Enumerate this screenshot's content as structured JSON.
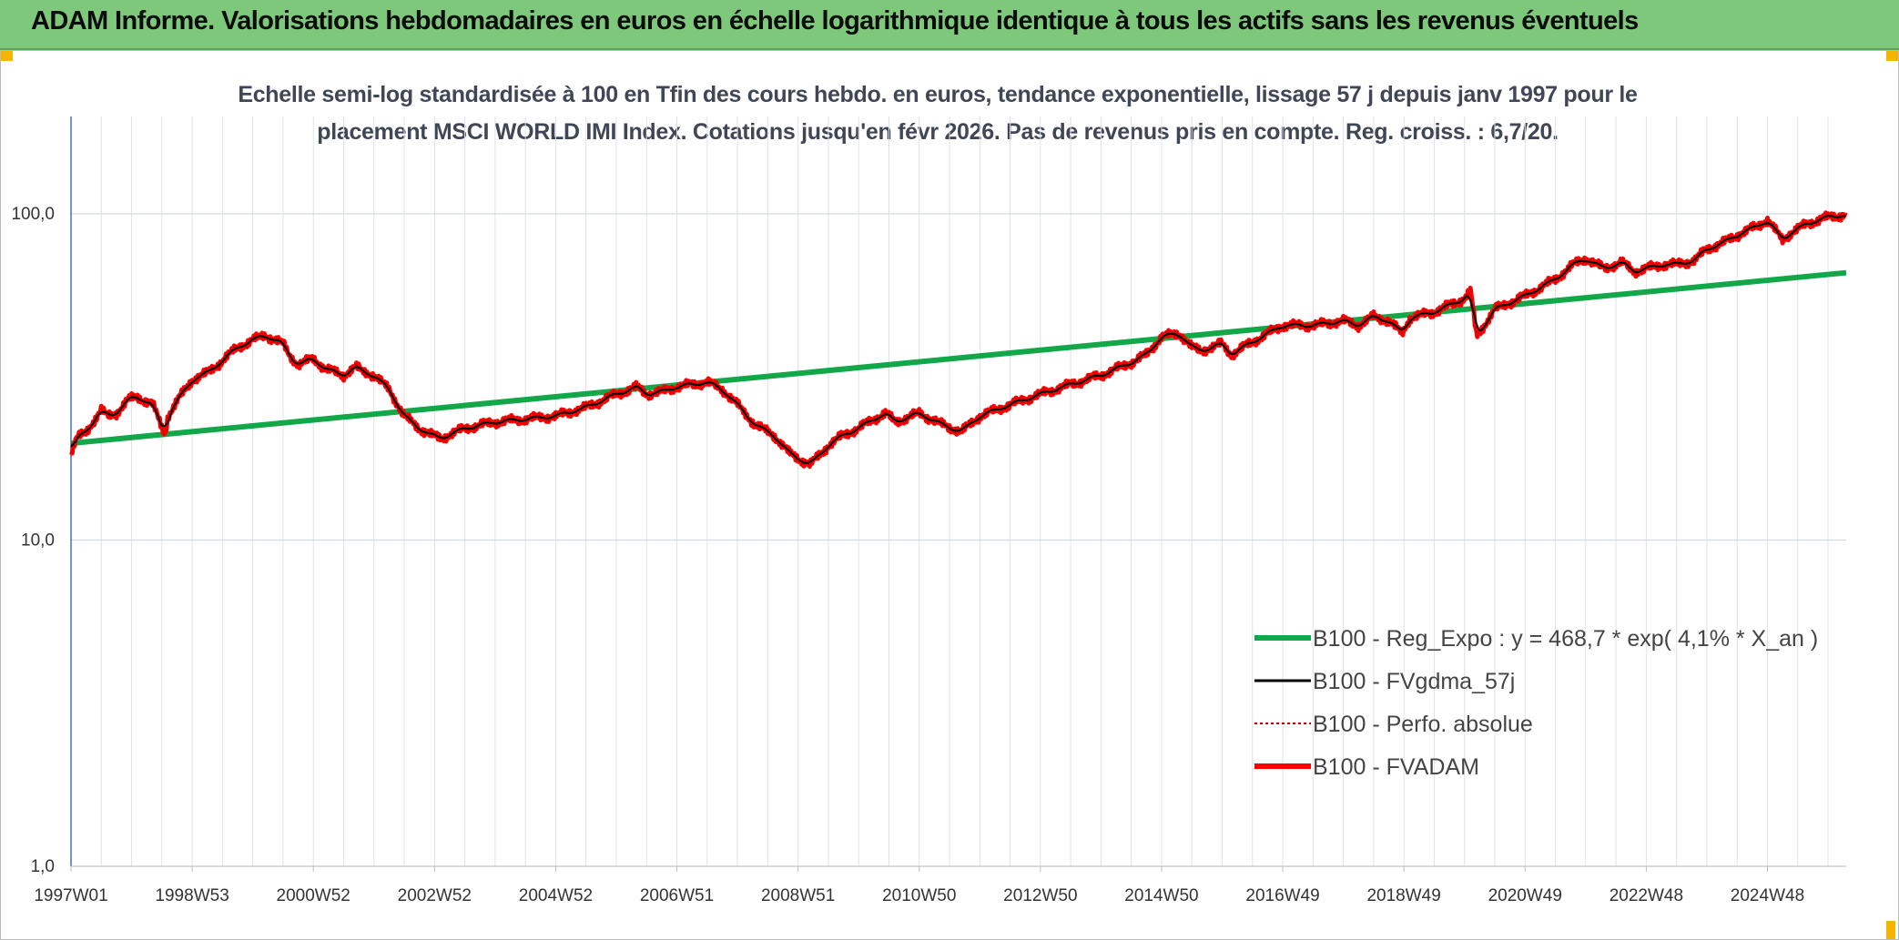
{
  "header": {
    "title": "ADAM Informe. Valorisations hebdomadaires en euros en échelle logarithmique identique à tous les actifs sans les revenus éventuels"
  },
  "colors": {
    "banner": "#7dc87a",
    "accent": "#f5b400",
    "regression": "#12a84a",
    "fvadam": "#ff0000",
    "fvgdma": "#000000",
    "perfo": "#c00000"
  },
  "chart_data": {
    "type": "line",
    "title_line1": "Echelle semi-log standardisée à 100 en Tfin des cours hebdo. en euros, tendance exponentielle, lissage 57 j depuis janv 1997 pour le",
    "title_line2": "placement MSCI WORLD IMI Index. Cotations jusqu'en févr 2026. Pas de revenus pris en compte. Reg. croiss. : 6,7/20.",
    "yscale": "log",
    "ylim": [
      1,
      200
    ],
    "y_ticks": [
      {
        "v": 1,
        "label": "1,0"
      },
      {
        "v": 10,
        "label": "10,0"
      },
      {
        "v": 100,
        "label": "100,0"
      }
    ],
    "xlim": [
      1997.0,
      2026.3
    ],
    "x_ticks": [
      {
        "t": 1997.0,
        "label": "1997W01"
      },
      {
        "t": 1999.0,
        "label": "1998W53"
      },
      {
        "t": 2001.0,
        "label": "2000W52"
      },
      {
        "t": 2003.0,
        "label": "2002W52"
      },
      {
        "t": 2005.0,
        "label": "2004W52"
      },
      {
        "t": 2007.0,
        "label": "2006W51"
      },
      {
        "t": 2009.0,
        "label": "2008W51"
      },
      {
        "t": 2011.0,
        "label": "2010W50"
      },
      {
        "t": 2013.0,
        "label": "2012W50"
      },
      {
        "t": 2015.0,
        "label": "2014W50"
      },
      {
        "t": 2017.0,
        "label": "2016W49"
      },
      {
        "t": 2019.0,
        "label": "2018W49"
      },
      {
        "t": 2021.0,
        "label": "2020W49"
      },
      {
        "t": 2023.0,
        "label": "2022W48"
      },
      {
        "t": 2025.0,
        "label": "2024W48"
      }
    ],
    "series": [
      {
        "name": "B100 - Reg_Expo : y = 468,7 * exp( 4,1% *  X_an )",
        "kind": "regression",
        "x": [
          1997.0,
          2026.3
        ],
        "values": [
          19.8,
          66.0
        ]
      },
      {
        "name": "B100 - FVgdma_57j",
        "kind": "smooth"
      },
      {
        "name": "B100 - Perfo. absolue",
        "kind": "dotted"
      },
      {
        "name": "B100 - FVADAM",
        "kind": "actual",
        "x": [
          1997.0,
          1997.1,
          1997.25,
          1997.5,
          1997.6,
          1997.75,
          1997.95,
          1998.1,
          1998.35,
          1998.55,
          1998.6,
          1998.8,
          1999.0,
          1999.25,
          1999.5,
          1999.75,
          2000.0,
          2000.2,
          2000.5,
          2000.6,
          2000.75,
          2001.0,
          2001.2,
          2001.5,
          2001.7,
          2001.8,
          2002.0,
          2002.25,
          2002.5,
          2002.75,
          2002.95,
          2003.1,
          2003.5,
          2004.0,
          2004.5,
          2005.0,
          2005.5,
          2006.0,
          2006.35,
          2006.5,
          2006.75,
          2007.0,
          2007.5,
          2007.75,
          2008.0,
          2008.3,
          2008.6,
          2008.85,
          2009.2,
          2009.5,
          2009.75,
          2010.0,
          2010.25,
          2010.45,
          2010.6,
          2011.0,
          2011.4,
          2011.7,
          2012.0,
          2012.5,
          2013.0,
          2013.5,
          2014.0,
          2014.5,
          2014.75,
          2015.0,
          2015.3,
          2015.5,
          2015.65,
          2016.0,
          2016.15,
          2016.5,
          2017.0,
          2017.5,
          2018.0,
          2018.25,
          2018.5,
          2018.75,
          2018.97,
          2019.1,
          2019.5,
          2020.0,
          2020.1,
          2020.2,
          2020.5,
          2021.0,
          2021.5,
          2021.8,
          2022.0,
          2022.3,
          2022.6,
          2022.8,
          2023.0,
          2023.3,
          2023.5,
          2023.8,
          2024.0,
          2024.3,
          2024.55,
          2024.85,
          2025.0,
          2025.25,
          2025.4,
          2025.6,
          2025.9,
          2026.1,
          2026.3
        ],
        "values": [
          18.5,
          20.5,
          21.5,
          25.0,
          24.0,
          24.5,
          27.0,
          27.5,
          26.0,
          21.0,
          24.0,
          27.5,
          31.0,
          32.5,
          35.5,
          39.0,
          41.0,
          42.5,
          40.0,
          37.0,
          34.5,
          36.0,
          33.5,
          32.0,
          34.0,
          33.0,
          32.0,
          29.0,
          24.0,
          22.0,
          21.0,
          20.5,
          22.0,
          23.0,
          23.5,
          24.0,
          25.5,
          28.0,
          29.5,
          28.0,
          28.5,
          29.5,
          30.5,
          29.0,
          26.0,
          22.5,
          21.0,
          18.5,
          17.0,
          19.5,
          21.0,
          22.0,
          23.5,
          24.5,
          23.0,
          24.5,
          22.5,
          21.5,
          24.0,
          26.0,
          28.0,
          30.0,
          32.0,
          35.0,
          37.0,
          42.0,
          43.0,
          39.0,
          38.0,
          40.0,
          37.0,
          40.5,
          45.5,
          45.5,
          47.0,
          45.5,
          48.5,
          47.0,
          43.0,
          48.0,
          50.0,
          55.0,
          58.0,
          42.0,
          51.0,
          56.0,
          63.0,
          70.0,
          73.0,
          68.0,
          71.0,
          66.5,
          68.0,
          70.0,
          70.0,
          72.0,
          78.0,
          82.0,
          87.0,
          92.0,
          96.0,
          83.0,
          88.0,
          92.0,
          97.0,
          98.0,
          100.0
        ]
      }
    ],
    "legend_position": "bottom-right"
  }
}
